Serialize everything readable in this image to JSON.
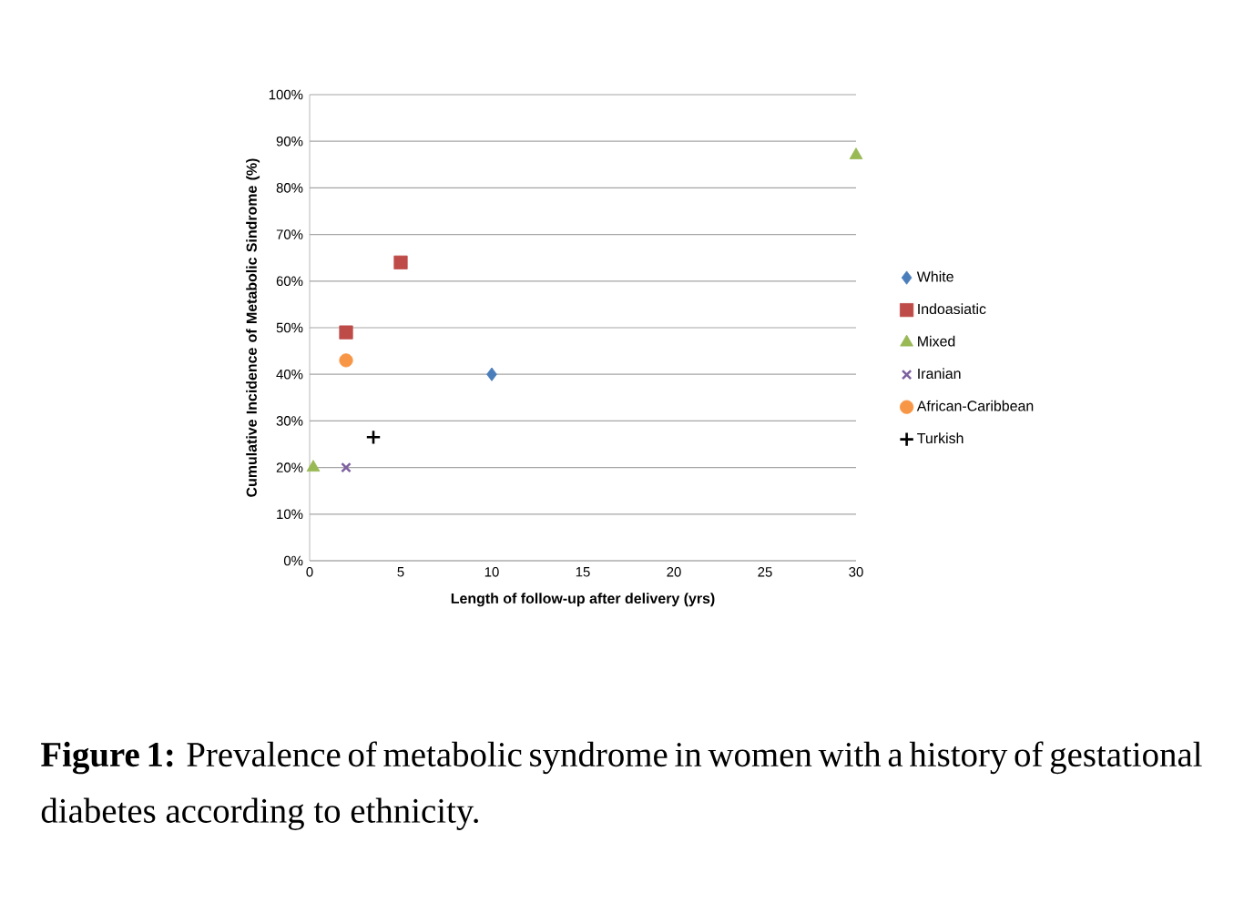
{
  "chart_data": {
    "type": "scatter",
    "xlabel": "Length of follow-up after delivery (yrs)",
    "ylabel": "Cumulative Incidence of Metabolic Sindrome (%)",
    "annotations": [
      "**Figure 1:** Prevalence of metabolic syndrome in women with a history of gestational diabetes according to ethnicity."
    ],
    "series": [
      {
        "name": "White",
        "color": "#4a7ebb",
        "marker": "diamond",
        "x": [
          10
        ],
        "values": [
          40
        ]
      },
      {
        "name": "Indoasiatic",
        "color": "#be4b48",
        "marker": "square",
        "x": [
          2,
          5
        ],
        "values": [
          49,
          64
        ]
      },
      {
        "name": "Mixed",
        "color": "#98b954",
        "marker": "triangle",
        "x": [
          0.2,
          30
        ],
        "values": [
          20,
          87
        ]
      },
      {
        "name": "Iranian",
        "color": "#7d60a0",
        "marker": "cross",
        "x": [
          2
        ],
        "values": [
          20
        ]
      },
      {
        "name": "African-Caribbean",
        "color": "#f79646",
        "marker": "circle",
        "x": [
          2
        ],
        "values": [
          43
        ]
      },
      {
        "name": "Turkish",
        "color": "#000000",
        "marker": "plus",
        "x": [
          3.5
        ],
        "values": [
          26.5
        ]
      }
    ],
    "xlim": [
      0,
      30
    ],
    "xticks": [
      0,
      5,
      10,
      15,
      20,
      25,
      30
    ],
    "ylim": [
      0,
      100
    ],
    "yticks": [
      {
        "value": 0,
        "label": "0%"
      },
      {
        "value": 10,
        "label": "10%"
      },
      {
        "value": 20,
        "label": "20%"
      },
      {
        "value": 30,
        "label": "30%"
      },
      {
        "value": 40,
        "label": "40%"
      },
      {
        "value": 50,
        "label": "50%"
      },
      {
        "value": 60,
        "label": "60%"
      },
      {
        "value": 70,
        "label": "70%"
      },
      {
        "value": 80,
        "label": "80%"
      },
      {
        "value": 90,
        "label": "90%"
      },
      {
        "value": 100,
        "label": "100%"
      }
    ],
    "grid": "y",
    "legend": "right"
  }
}
